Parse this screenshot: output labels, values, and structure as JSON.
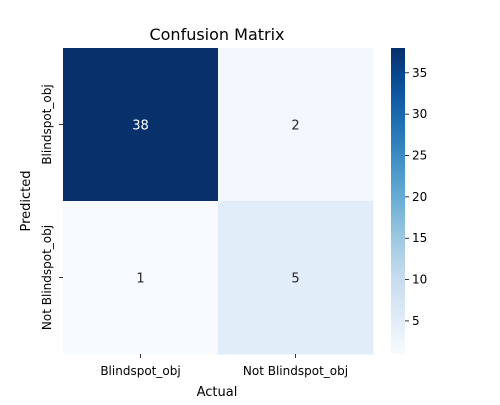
{
  "chart_data": {
    "type": "heatmap",
    "title": "Confusion Matrix",
    "xlabel": "Actual",
    "ylabel": "Predicted",
    "x_categories": [
      "Blindspot_obj",
      "Not Blindspot_obj"
    ],
    "y_categories": [
      "Blindspot_obj",
      "Not Blindspot_obj"
    ],
    "values": [
      [
        38,
        2
      ],
      [
        1,
        5
      ]
    ],
    "colormap": "Blues",
    "colorbar": {
      "range": [
        1,
        38
      ],
      "ticks": [
        5,
        10,
        15,
        20,
        25,
        30,
        35
      ]
    },
    "colors": {
      "low": "#f7fbff",
      "high": "#08306b"
    }
  }
}
